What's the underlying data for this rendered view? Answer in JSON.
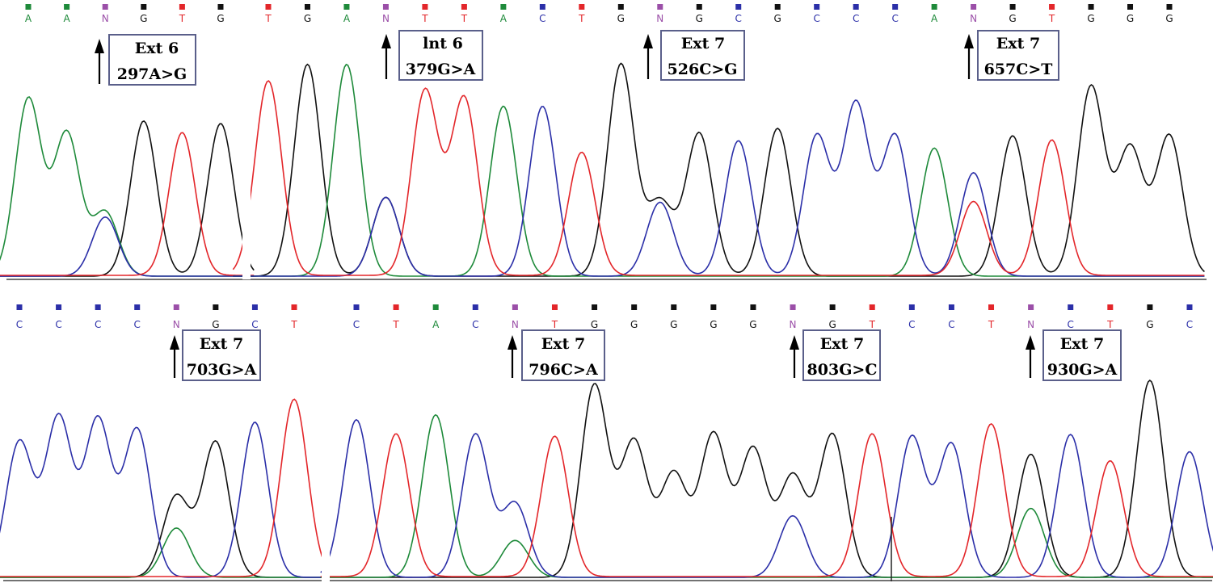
{
  "base_colors": {
    "A": "#1e8a3a",
    "C": "#2b2fa8",
    "G": "#111111",
    "T": "#e3262a",
    "N": "#9b4fa8"
  },
  "rows": [
    {
      "segments": [
        {
          "sequence": [
            "A",
            "A",
            "N",
            "G",
            "T",
            "G"
          ]
        },
        {
          "sequence": [
            "T",
            "G",
            "A",
            "N",
            "T",
            "T",
            "A",
            "C",
            "T",
            "G",
            "N",
            "G",
            "C",
            "G",
            "C",
            "C",
            "C",
            "A",
            "N",
            "G",
            "T",
            "G",
            "G",
            "G"
          ]
        }
      ],
      "annotations": [
        {
          "region": "Ext 6",
          "variant": "297A>G"
        },
        {
          "region": "lnt 6",
          "variant": "379G>A"
        },
        {
          "region": "Ext 7",
          "variant": "526C>G"
        },
        {
          "region": "Ext 7",
          "variant": "657C>T"
        }
      ]
    },
    {
      "segments": [
        {
          "sequence": [
            "C",
            "C",
            "C",
            "C",
            "N",
            "G",
            "C",
            "T"
          ]
        },
        {
          "sequence": [
            "C",
            "T",
            "A",
            "C",
            "N",
            "T",
            "G",
            "G",
            "G",
            "G",
            "G",
            "N",
            "G",
            "T",
            "C",
            "C",
            "T",
            "N",
            "C",
            "T",
            "G",
            "C"
          ]
        }
      ],
      "annotations": [
        {
          "region": "Ext 7",
          "variant": "703G>A"
        },
        {
          "region": "Ext 7",
          "variant": "796C>A"
        },
        {
          "region": "Ext 7",
          "variant": "803G>C"
        },
        {
          "region": "Ext 7",
          "variant": "930G>A"
        }
      ]
    }
  ]
}
